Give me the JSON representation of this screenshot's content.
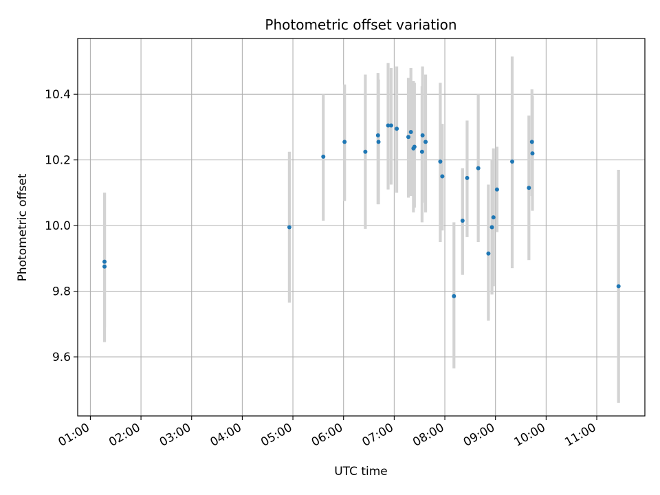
{
  "chart_data": {
    "type": "scatter",
    "title": "Photometric offset variation",
    "xlabel": "UTC time",
    "ylabel": "Photometric offset",
    "x_unit": "hours UTC",
    "xlim": [
      0.75,
      11.95
    ],
    "ylim": [
      9.42,
      10.57
    ],
    "x_ticks": [
      {
        "value": 1,
        "label": "01:00"
      },
      {
        "value": 2,
        "label": "02:00"
      },
      {
        "value": 3,
        "label": "03:00"
      },
      {
        "value": 4,
        "label": "04:00"
      },
      {
        "value": 5,
        "label": "05:00"
      },
      {
        "value": 6,
        "label": "06:00"
      },
      {
        "value": 7,
        "label": "07:00"
      },
      {
        "value": 8,
        "label": "08:00"
      },
      {
        "value": 9,
        "label": "09:00"
      },
      {
        "value": 10,
        "label": "10:00"
      },
      {
        "value": 11,
        "label": "11:00"
      }
    ],
    "y_ticks": [
      {
        "value": 9.6,
        "label": "9.6"
      },
      {
        "value": 9.8,
        "label": "9.8"
      },
      {
        "value": 10.0,
        "label": "10.0"
      },
      {
        "value": 10.2,
        "label": "10.2"
      },
      {
        "value": 10.4,
        "label": "10.4"
      }
    ],
    "grid": true,
    "point_color": "#1f77b4",
    "errorbar_color": "#d3d3d3",
    "points": [
      {
        "x": 1.28,
        "y": 9.89,
        "lo": 9.69,
        "hi": 10.1
      },
      {
        "x": 1.28,
        "y": 9.875,
        "lo": 9.645,
        "hi": 10.1
      },
      {
        "x": 4.93,
        "y": 9.995,
        "lo": 9.765,
        "hi": 10.225
      },
      {
        "x": 5.6,
        "y": 10.21,
        "lo": 10.015,
        "hi": 10.4
      },
      {
        "x": 6.02,
        "y": 10.255,
        "lo": 10.075,
        "hi": 10.43
      },
      {
        "x": 6.43,
        "y": 10.225,
        "lo": 9.99,
        "hi": 10.46
      },
      {
        "x": 6.68,
        "y": 10.275,
        "lo": 10.065,
        "hi": 10.465
      },
      {
        "x": 6.69,
        "y": 10.255,
        "lo": 10.065,
        "hi": 10.445
      },
      {
        "x": 6.88,
        "y": 10.305,
        "lo": 10.11,
        "hi": 10.495
      },
      {
        "x": 6.94,
        "y": 10.305,
        "lo": 10.125,
        "hi": 10.48
      },
      {
        "x": 7.05,
        "y": 10.295,
        "lo": 10.1,
        "hi": 10.485
      },
      {
        "x": 7.28,
        "y": 10.27,
        "lo": 10.085,
        "hi": 10.45
      },
      {
        "x": 7.33,
        "y": 10.285,
        "lo": 10.09,
        "hi": 10.48
      },
      {
        "x": 7.38,
        "y": 10.235,
        "lo": 10.04,
        "hi": 10.44
      },
      {
        "x": 7.4,
        "y": 10.24,
        "lo": 10.055,
        "hi": 10.435
      },
      {
        "x": 7.55,
        "y": 10.225,
        "lo": 10.01,
        "hi": 10.425
      },
      {
        "x": 7.56,
        "y": 10.275,
        "lo": 10.07,
        "hi": 10.485
      },
      {
        "x": 7.62,
        "y": 10.255,
        "lo": 10.04,
        "hi": 10.46
      },
      {
        "x": 7.91,
        "y": 10.195,
        "lo": 9.95,
        "hi": 10.435
      },
      {
        "x": 7.95,
        "y": 10.15,
        "lo": 9.985,
        "hi": 10.31
      },
      {
        "x": 8.18,
        "y": 9.785,
        "lo": 9.565,
        "hi": 10.01
      },
      {
        "x": 8.35,
        "y": 10.015,
        "lo": 9.85,
        "hi": 10.175
      },
      {
        "x": 8.44,
        "y": 10.145,
        "lo": 9.965,
        "hi": 10.32
      },
      {
        "x": 8.66,
        "y": 10.175,
        "lo": 9.95,
        "hi": 10.4
      },
      {
        "x": 8.86,
        "y": 9.915,
        "lo": 9.71,
        "hi": 10.125
      },
      {
        "x": 8.93,
        "y": 9.995,
        "lo": 9.79,
        "hi": 10.2
      },
      {
        "x": 8.96,
        "y": 10.025,
        "lo": 9.815,
        "hi": 10.235
      },
      {
        "x": 9.03,
        "y": 10.11,
        "lo": 9.98,
        "hi": 10.24
      },
      {
        "x": 9.33,
        "y": 10.195,
        "lo": 9.87,
        "hi": 10.515
      },
      {
        "x": 9.66,
        "y": 10.115,
        "lo": 9.895,
        "hi": 10.335
      },
      {
        "x": 9.72,
        "y": 10.255,
        "lo": 10.09,
        "hi": 10.415
      },
      {
        "x": 9.73,
        "y": 10.22,
        "lo": 10.045,
        "hi": 10.395
      },
      {
        "x": 11.43,
        "y": 9.815,
        "lo": 9.46,
        "hi": 10.17
      }
    ]
  }
}
